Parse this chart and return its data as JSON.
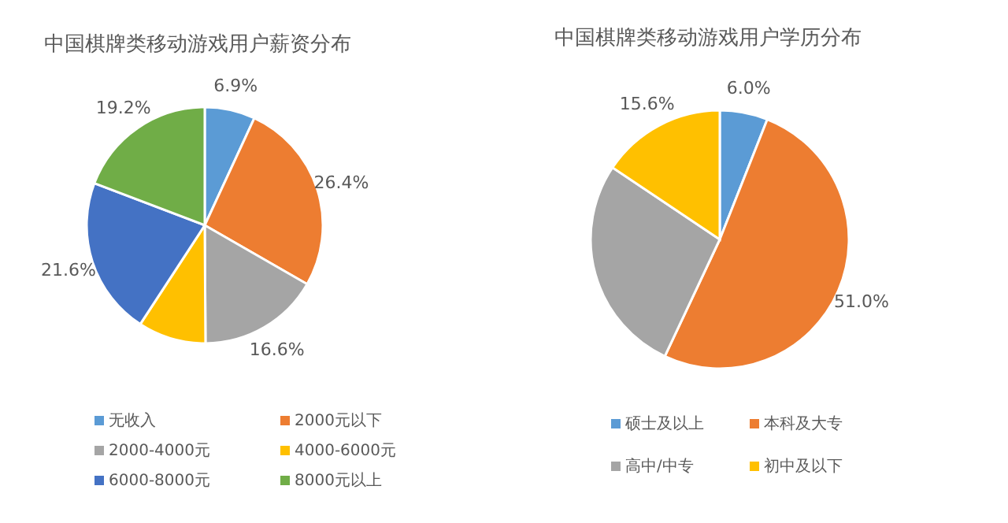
{
  "chart_data": [
    {
      "type": "pie",
      "title": "中国棋牌类移动游戏用户薪资分布",
      "categories": [
        "无收入",
        "2000元以下",
        "2000-4000元",
        "4000-6000元",
        "6000-8000元",
        "8000元以上"
      ],
      "values": [
        6.9,
        26.4,
        16.6,
        9.3,
        21.6,
        19.2
      ],
      "value_labels": [
        "6.9%",
        "26.4%",
        "16.6%",
        null,
        "21.6%",
        "19.2%"
      ],
      "colors": [
        "#5b9bd5",
        "#ed7d31",
        "#a5a5a5",
        "#ffc000",
        "#4472c4",
        "#70ad47"
      ],
      "legend": "bottom"
    },
    {
      "type": "pie",
      "title": "中国棋牌类移动游戏用户学历分布",
      "categories": [
        "硕士及以上",
        "本科及大专",
        "高中/中专",
        "初中及以下"
      ],
      "values": [
        6.0,
        51.0,
        27.4,
        15.6
      ],
      "value_labels": [
        "6.0%",
        "51.0%",
        null,
        "15.6%"
      ],
      "colors": [
        "#5b9bd5",
        "#ed7d31",
        "#a5a5a5",
        "#ffc000"
      ],
      "legend": "bottom"
    }
  ]
}
